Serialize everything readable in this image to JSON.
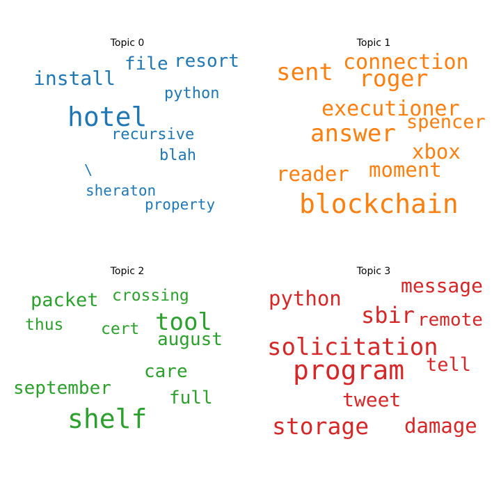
{
  "chart_data": [
    {
      "type": "wordcloud",
      "title": "Topic 0",
      "color": "#1f77b4",
      "words": [
        {
          "text": "hotel",
          "weight": 1.0
        },
        {
          "text": "install",
          "weight": 0.55
        },
        {
          "text": "resort",
          "weight": 0.52
        },
        {
          "text": "file",
          "weight": 0.48
        },
        {
          "text": "python",
          "weight": 0.42
        },
        {
          "text": "recursive",
          "weight": 0.41
        },
        {
          "text": "blah",
          "weight": 0.4
        },
        {
          "text": "sheraton",
          "weight": 0.38
        },
        {
          "text": "property",
          "weight": 0.38
        },
        {
          "text": "\\",
          "weight": 0.36
        }
      ]
    },
    {
      "type": "wordcloud",
      "title": "Topic 1",
      "color": "#ff7f0e",
      "words": [
        {
          "text": "blockchain",
          "weight": 1.0
        },
        {
          "text": "answer",
          "weight": 0.9
        },
        {
          "text": "sent",
          "weight": 0.85
        },
        {
          "text": "roger",
          "weight": 0.82
        },
        {
          "text": "executioner",
          "weight": 0.75
        },
        {
          "text": "connection",
          "weight": 0.74
        },
        {
          "text": "moment",
          "weight": 0.7
        },
        {
          "text": "xbox",
          "weight": 0.69
        },
        {
          "text": "reader",
          "weight": 0.68
        },
        {
          "text": "spencer",
          "weight": 0.64
        }
      ]
    },
    {
      "type": "wordcloud",
      "title": "Topic 2",
      "color": "#2ca02c",
      "words": [
        {
          "text": "shelf",
          "weight": 1.0
        },
        {
          "text": "tool",
          "weight": 0.85
        },
        {
          "text": "packet",
          "weight": 0.68
        },
        {
          "text": "september",
          "weight": 0.66
        },
        {
          "text": "august",
          "weight": 0.66
        },
        {
          "text": "care",
          "weight": 0.65
        },
        {
          "text": "full",
          "weight": 0.62
        },
        {
          "text": "crossing",
          "weight": 0.58
        },
        {
          "text": "thus",
          "weight": 0.56
        },
        {
          "text": "cert",
          "weight": 0.56
        }
      ]
    },
    {
      "type": "wordcloud",
      "title": "Topic 3",
      "color": "#d62728",
      "words": [
        {
          "text": "program",
          "weight": 1.0
        },
        {
          "text": "solicitation",
          "weight": 0.9
        },
        {
          "text": "storage",
          "weight": 0.88
        },
        {
          "text": "sbir",
          "weight": 0.84
        },
        {
          "text": "python",
          "weight": 0.8
        },
        {
          "text": "damage",
          "weight": 0.79
        },
        {
          "text": "message",
          "weight": 0.78
        },
        {
          "text": "tweet",
          "weight": 0.76
        },
        {
          "text": "tell",
          "weight": 0.74
        },
        {
          "text": "remote",
          "weight": 0.73
        }
      ]
    }
  ]
}
